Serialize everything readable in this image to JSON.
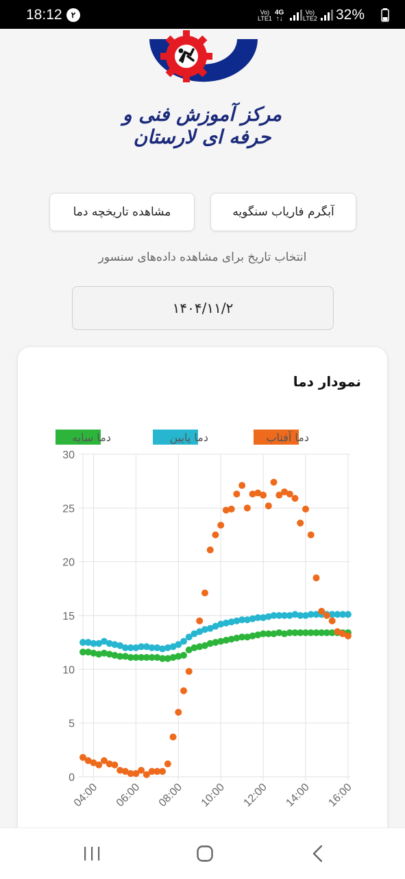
{
  "status_bar": {
    "time": "18:12",
    "notification_count": "۲",
    "sim1_label_top": "Vo)",
    "sim1_label_bottom": "LTE1",
    "network_type": "4G",
    "sim2_label_top": "Vo)",
    "sim2_label_bottom": "LTE2",
    "battery": "32%",
    "icons": [
      "signal-icon",
      "battery-icon"
    ]
  },
  "logo": {
    "icon": "gear-logo-icon",
    "caption": "مرکز آموزش فنی و حرفه ای لارستان",
    "colors": {
      "blue": "#0d2a8c",
      "red": "#e51b24"
    }
  },
  "buttons": {
    "source": "آبگرم فارياب سنگويه",
    "history": "مشاهده تاریخچه دما"
  },
  "date_prompt": "انتخاب تاریخ برای مشاهده داده‌های سنسور",
  "date_value": "۱۴۰۴/۱۱/۲",
  "chart_card": {
    "title": "نمودار دما"
  },
  "chart_data": {
    "type": "scatter",
    "title": "نمودار دما",
    "legend_position": "top",
    "xlim": [
      "03:30",
      "16:06"
    ],
    "ylim": [
      0,
      30
    ],
    "x_ticks": [
      "04:00",
      "06:00",
      "08:00",
      "10:00",
      "12:00",
      "14:00",
      "16:00"
    ],
    "y_ticks": [
      0,
      5,
      10,
      15,
      20,
      25,
      30
    ],
    "grid": true,
    "series": [
      {
        "name": "دما آفتاب",
        "color": "#ee6a1c",
        "x": [
          "03:30",
          "03:45",
          "04:00",
          "04:15",
          "04:30",
          "04:45",
          "05:00",
          "05:15",
          "05:30",
          "05:45",
          "06:00",
          "06:15",
          "06:30",
          "06:45",
          "07:00",
          "07:15",
          "07:30",
          "07:45",
          "08:00",
          "08:15",
          "08:30",
          "08:45",
          "09:00",
          "09:15",
          "09:30",
          "09:45",
          "10:00",
          "10:15",
          "10:30",
          "10:45",
          "11:00",
          "11:15",
          "11:30",
          "11:45",
          "12:00",
          "12:15",
          "12:30",
          "12:45",
          "13:00",
          "13:15",
          "13:30",
          "13:45",
          "14:00",
          "14:15",
          "14:30",
          "14:45",
          "15:00",
          "15:15",
          "15:30",
          "15:45",
          "16:00"
        ],
        "y": [
          1.8,
          1.5,
          1.3,
          1.1,
          1.5,
          1.2,
          1.1,
          0.6,
          0.5,
          0.3,
          0.3,
          0.6,
          0.2,
          0.5,
          0.5,
          0.5,
          1.2,
          3.7,
          6.0,
          8.0,
          9.8,
          null,
          14.5,
          17.1,
          21.1,
          22.5,
          23.4,
          24.8,
          24.9,
          26.3,
          27.1,
          25.0,
          26.3,
          26.4,
          26.2,
          25.2,
          27.4,
          26.2,
          26.5,
          26.3,
          25.9,
          23.6,
          24.9,
          22.5,
          18.5,
          15.4,
          15.0,
          14.5,
          13.5,
          13.3,
          13.1
        ]
      },
      {
        "name": "دما پایین",
        "color": "#27b6d0",
        "x": [
          "03:30",
          "03:45",
          "04:00",
          "04:15",
          "04:30",
          "04:45",
          "05:00",
          "05:15",
          "05:30",
          "05:45",
          "06:00",
          "06:15",
          "06:30",
          "06:45",
          "07:00",
          "07:15",
          "07:30",
          "07:45",
          "08:00",
          "08:15",
          "08:30",
          "08:45",
          "09:00",
          "09:15",
          "09:30",
          "09:45",
          "10:00",
          "10:15",
          "10:30",
          "10:45",
          "11:00",
          "11:15",
          "11:30",
          "11:45",
          "12:00",
          "12:15",
          "12:30",
          "12:45",
          "13:00",
          "13:15",
          "13:30",
          "13:45",
          "14:00",
          "14:15",
          "14:30",
          "14:45",
          "15:00",
          "15:15",
          "15:30",
          "15:45",
          "16:00"
        ],
        "y": [
          12.5,
          12.5,
          12.4,
          12.4,
          12.6,
          12.4,
          12.3,
          12.2,
          12.0,
          12.0,
          12.0,
          12.1,
          12.1,
          12.0,
          12.0,
          11.9,
          12.0,
          12.1,
          12.3,
          12.6,
          13.0,
          13.3,
          13.5,
          13.7,
          13.8,
          14.0,
          14.2,
          14.3,
          14.4,
          14.5,
          14.6,
          14.6,
          14.7,
          14.8,
          14.8,
          14.9,
          15.0,
          15.0,
          15.0,
          15.0,
          15.1,
          15.0,
          15.0,
          15.1,
          15.1,
          15.1,
          15.1,
          15.1,
          15.1,
          15.1,
          15.1
        ]
      },
      {
        "name": "دما سایه",
        "color": "#2db53b",
        "x": [
          "03:30",
          "03:45",
          "04:00",
          "04:15",
          "04:30",
          "04:45",
          "05:00",
          "05:15",
          "05:30",
          "05:45",
          "06:00",
          "06:15",
          "06:30",
          "06:45",
          "07:00",
          "07:15",
          "07:30",
          "07:45",
          "08:00",
          "08:15",
          "08:30",
          "08:45",
          "09:00",
          "09:15",
          "09:30",
          "09:45",
          "10:00",
          "10:15",
          "10:30",
          "10:45",
          "11:00",
          "11:15",
          "11:30",
          "11:45",
          "12:00",
          "12:15",
          "12:30",
          "12:45",
          "13:00",
          "13:15",
          "13:30",
          "13:45",
          "14:00",
          "14:15",
          "14:30",
          "14:45",
          "15:00",
          "15:15",
          "15:30",
          "15:45",
          "16:00"
        ],
        "y": [
          11.6,
          11.6,
          11.5,
          11.4,
          11.5,
          11.4,
          11.3,
          11.2,
          11.2,
          11.1,
          11.1,
          11.1,
          11.1,
          11.1,
          11.1,
          11.0,
          11.0,
          11.1,
          11.2,
          11.3,
          11.8,
          12.0,
          12.1,
          12.2,
          12.4,
          12.5,
          12.6,
          12.7,
          12.8,
          12.9,
          13.0,
          13.0,
          13.1,
          13.2,
          13.3,
          13.3,
          13.3,
          13.4,
          13.3,
          13.4,
          13.4,
          13.4,
          13.4,
          13.4,
          13.4,
          13.4,
          13.4,
          13.4,
          13.4,
          13.4,
          13.4
        ]
      }
    ]
  }
}
